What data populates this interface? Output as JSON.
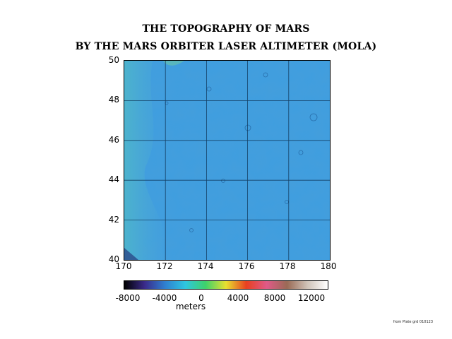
{
  "title": "THE TOPOGRAPHY OF MARS",
  "subtitle": "BY THE MARS ORBITER LASER ALTIMETER (MOLA)",
  "map": {
    "y_ticks": [
      "50",
      "48",
      "46",
      "44",
      "42",
      "40"
    ],
    "x_ticks": [
      "170",
      "172",
      "174",
      "176",
      "178",
      "180"
    ],
    "lat_range": [
      40,
      50
    ],
    "lon_range": [
      170,
      180
    ]
  },
  "colorbar": {
    "tick_labels": [
      "-8000",
      "-4000",
      "0",
      "4000",
      "8000",
      "12000"
    ],
    "unit": "meters",
    "colors": [
      "#000000",
      "#3a2a8a",
      "#2f7fd0",
      "#2ec6e0",
      "#3ed26a",
      "#e8e030",
      "#e84020",
      "#e05a88",
      "#9a6a55",
      "#cfc3b8",
      "#ffffff"
    ]
  },
  "footnote": "from Plate grd 010123"
}
